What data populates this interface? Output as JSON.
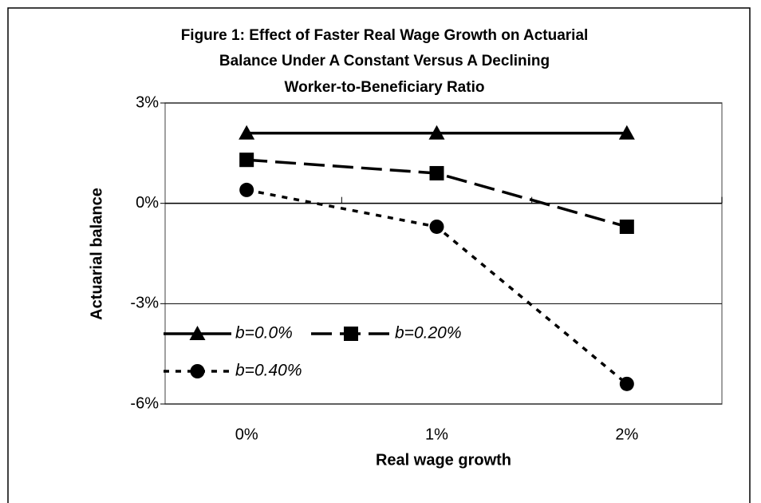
{
  "chart_data": {
    "type": "line",
    "title": [
      "Figure 1: Effect of Faster Real Wage Growth on Actuarial",
      "Balance Under A Constant Versus A Declining",
      "Worker-to-Beneficiary Ratio"
    ],
    "x_label": "Real wage growth",
    "y_label": "Actuarial balance",
    "categories": [
      "0%",
      "1%",
      "2%"
    ],
    "series": [
      {
        "name": "b=0.0%",
        "color": "#000000",
        "marker": "triangle",
        "dash": "solid",
        "values": [
          2.1,
          2.1,
          2.1
        ]
      },
      {
        "name": "b=0.20%",
        "color": "#000000",
        "marker": "square",
        "dash": "long-dash",
        "values": [
          1.3,
          0.9,
          -0.7
        ]
      },
      {
        "name": "b=0.40%",
        "color": "#000000",
        "marker": "circle",
        "dash": "dot",
        "values": [
          0.4,
          -0.7,
          -5.4
        ]
      }
    ],
    "ylim": [
      -6,
      3
    ],
    "yticks": [
      {
        "value": -6,
        "label": "-6%"
      },
      {
        "value": -3,
        "label": "-3%"
      },
      {
        "value": 0,
        "label": "0%"
      },
      {
        "value": 3,
        "label": "3%"
      }
    ],
    "grid": true,
    "legend": "lower left"
  }
}
